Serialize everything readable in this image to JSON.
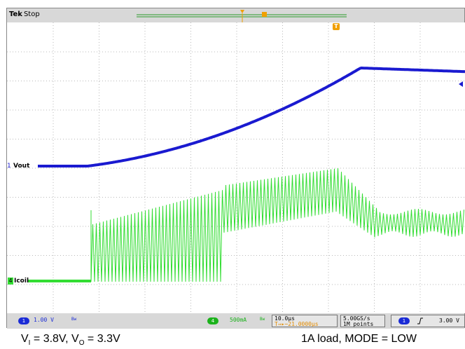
{
  "header": {
    "brand": "Tek",
    "state": "Stop"
  },
  "screen": {
    "ch1_label": "Vout",
    "ch4_label": "Icoil",
    "ch1_marker": "1",
    "ch4_marker": "4",
    "trigger_marker": "T"
  },
  "footer": {
    "ch1_num": "1",
    "ch1_scale": "1.00 V",
    "ch1_bw": "Bw",
    "ch4_num": "4",
    "ch4_scale": "500mA",
    "ch4_bw": "Bw",
    "timebase": "10.0µs",
    "trigger_pos": "T⇒▸−21.0000µs",
    "sample_rate": "5.00GS/s",
    "record_length": "1M points",
    "trig_src": "1",
    "trig_level": "3.00 V"
  },
  "captions": {
    "left_v1": "V",
    "left_sub1": "I",
    "left_mid": " = 3.8V, V",
    "left_sub2": "O",
    "left_end": " = 3.3V",
    "right": "1A load, MODE = LOW"
  },
  "colors": {
    "ch1": "#1a1ad0",
    "ch4": "#33dd33",
    "trigger": "#f0a000",
    "grid": "#b8b8b8"
  }
}
